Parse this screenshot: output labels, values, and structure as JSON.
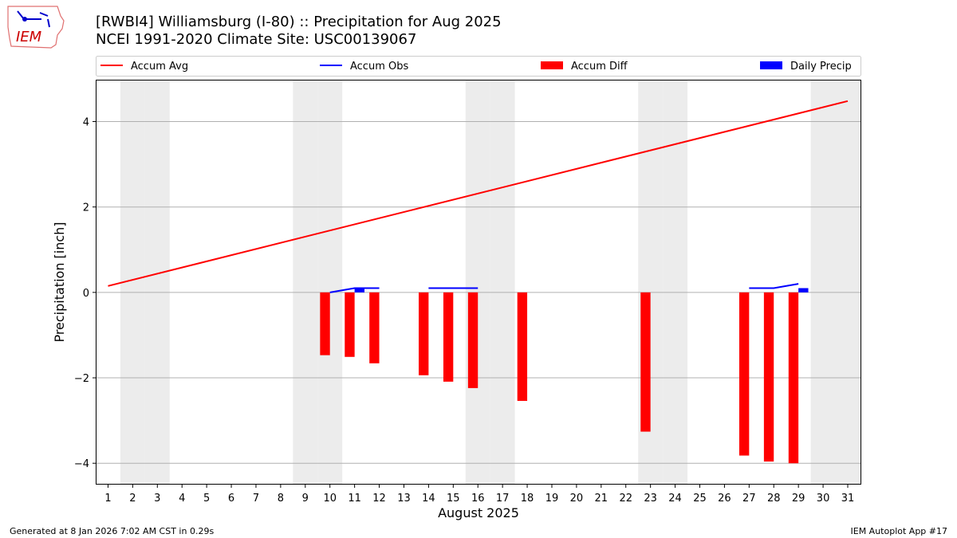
{
  "header": {
    "logo_text": "IEM",
    "title_line1": "[RWBI4] Williamsburg (I-80) :: Precipitation for Aug 2025",
    "title_line2": "NCEI 1991-2020 Climate Site: USC00139067"
  },
  "footer": {
    "left": "Generated at 8 Jan 2026 7:02 AM CST in 0.29s",
    "right": "IEM Autoplot App #17"
  },
  "chart_data": {
    "type": "bar",
    "xlabel": "August 2025",
    "ylabel": "Precipitation [inch]",
    "xlim": [
      0.5,
      31.55
    ],
    "ylim": [
      -4.5,
      4.98
    ],
    "yticks": [
      -4,
      -2,
      0,
      2,
      4
    ],
    "grid": true,
    "legend_placement": "top (above plot)",
    "weekend_shading_days": [
      2,
      3,
      9,
      10,
      16,
      17,
      23,
      24,
      30,
      31
    ],
    "x": [
      1,
      2,
      3,
      4,
      5,
      6,
      7,
      8,
      9,
      10,
      11,
      12,
      13,
      14,
      15,
      16,
      17,
      18,
      19,
      20,
      21,
      22,
      23,
      24,
      25,
      26,
      27,
      28,
      29,
      30,
      31
    ],
    "series": [
      {
        "name": "Accum Avg",
        "kind": "line",
        "color": "#ff0000",
        "x": [
          1,
          31
        ],
        "values": [
          0.15,
          4.48
        ]
      },
      {
        "name": "Accum Obs",
        "kind": "line",
        "color": "#0000ff",
        "segments": [
          {
            "x": [
              10,
              11,
              12
            ],
            "values": [
              0.0,
              0.1,
              0.1
            ]
          },
          {
            "x": [
              14,
              15,
              16
            ],
            "values": [
              0.1,
              0.1,
              0.1
            ]
          },
          {
            "x": [
              27,
              28,
              29
            ],
            "values": [
              0.1,
              0.1,
              0.2
            ]
          }
        ]
      },
      {
        "name": "Accum Diff",
        "kind": "bar",
        "color": "#ff0000",
        "x": [
          10,
          11,
          12,
          14,
          15,
          16,
          18,
          23,
          27,
          28,
          29
        ],
        "values": [
          -1.47,
          -1.51,
          -1.66,
          -1.94,
          -2.09,
          -2.24,
          -2.54,
          -3.26,
          -3.82,
          -3.96,
          -4.0
        ]
      },
      {
        "name": "Daily Precip",
        "kind": "bar",
        "color": "#0000ff",
        "x": [
          11,
          29
        ],
        "values": [
          0.1,
          0.1
        ]
      }
    ]
  }
}
